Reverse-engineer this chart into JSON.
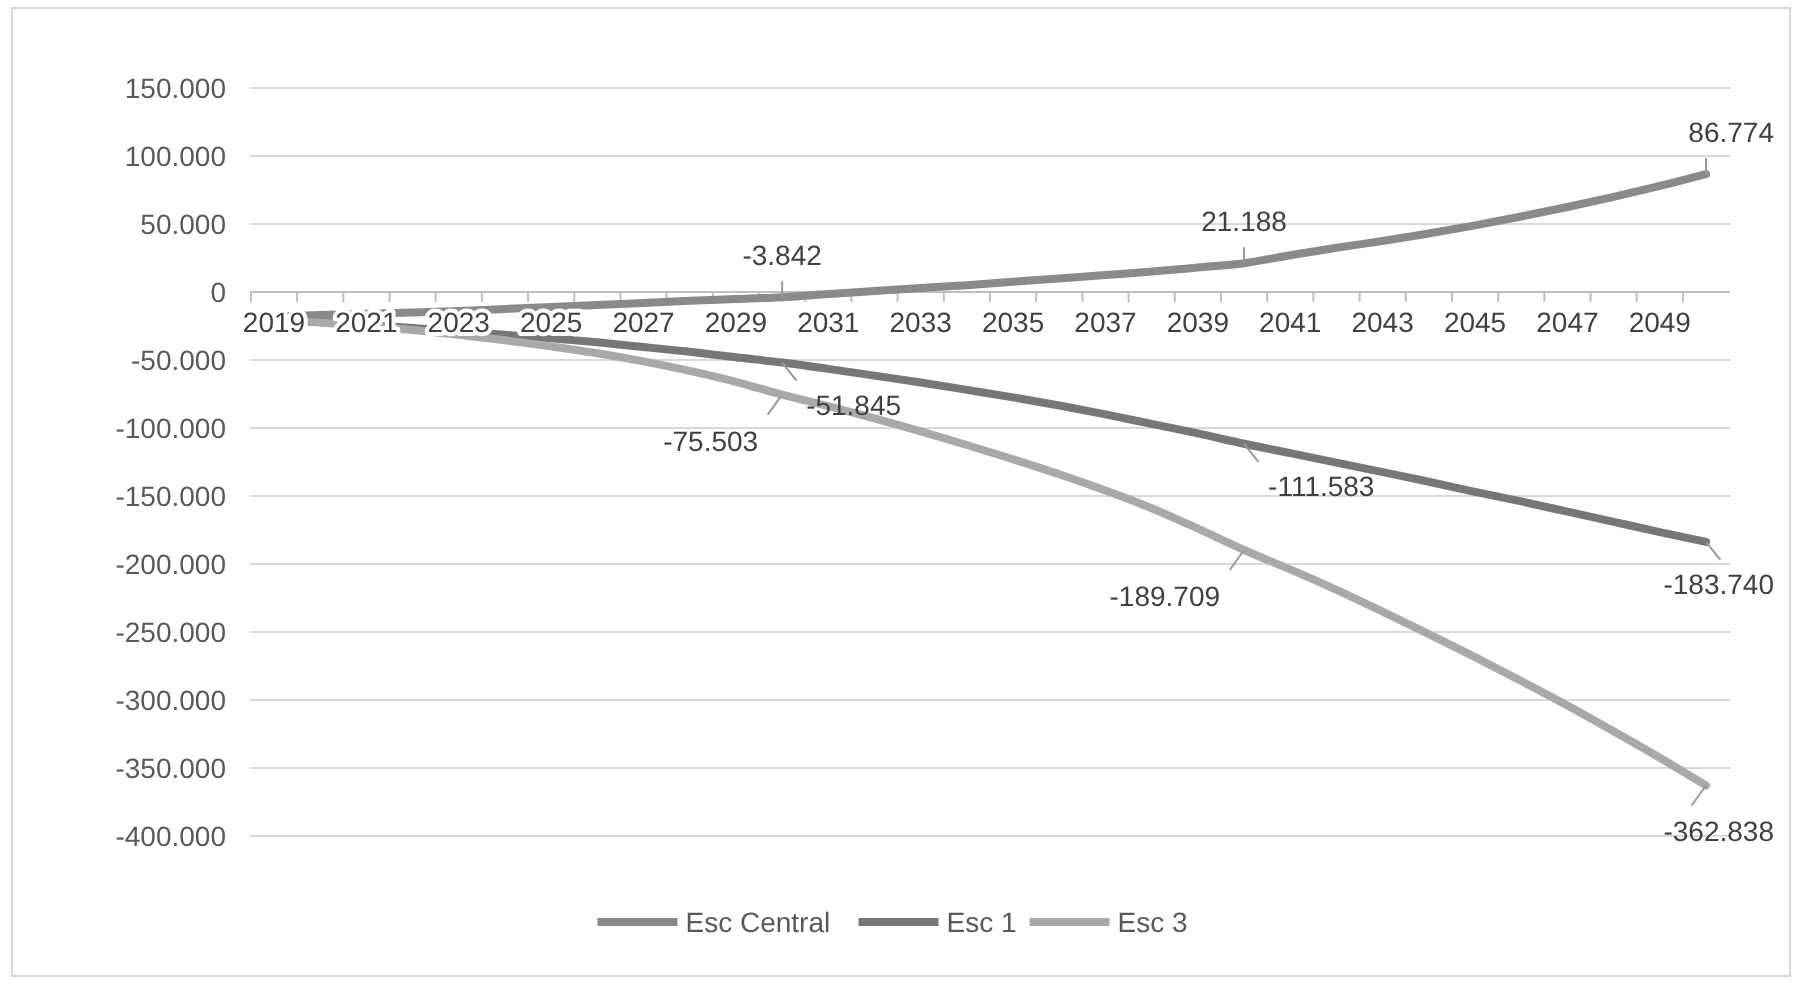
{
  "chart_data": {
    "type": "line",
    "categories": [
      "2019",
      null,
      "2021",
      null,
      "2023",
      null,
      "2025",
      null,
      "2027",
      null,
      "2029",
      null,
      "2031",
      null,
      "2033",
      null,
      "2035",
      null,
      "2037",
      null,
      "2039",
      null,
      "2041",
      null,
      "2043",
      null,
      "2045",
      null,
      "2047",
      null,
      "2049",
      null
    ],
    "series": [
      {
        "name": "Esc Central",
        "color": "#8a8a8a",
        "values": [
          -18000,
          -17000,
          -16000,
          -15000,
          -14000,
          -12500,
          -11000,
          -9500,
          -8000,
          -6500,
          -5200,
          -3842,
          -1500,
          800,
          3000,
          5000,
          7500,
          10000,
          12500,
          15000,
          18000,
          21188,
          27000,
          32500,
          37500,
          43000,
          49000,
          55500,
          62500,
          70000,
          78000,
          86774
        ],
        "value_labels": [
          null,
          null,
          null,
          null,
          null,
          null,
          null,
          null,
          null,
          null,
          null,
          "-3.842",
          null,
          null,
          null,
          null,
          null,
          null,
          null,
          null,
          null,
          "21.188",
          null,
          null,
          null,
          null,
          null,
          null,
          null,
          null,
          null,
          "86.774"
        ]
      },
      {
        "name": "Esc 1",
        "color": "#777777",
        "values": [
          -20000,
          -22000,
          -24000,
          -26500,
          -29000,
          -31500,
          -34000,
          -37000,
          -40500,
          -44000,
          -48000,
          -51845,
          -56500,
          -61500,
          -66500,
          -72000,
          -77500,
          -83500,
          -90000,
          -97000,
          -104000,
          -111583,
          -118500,
          -125500,
          -132500,
          -139500,
          -147000,
          -154000,
          -161500,
          -169000,
          -176500,
          -183740
        ],
        "value_labels": [
          null,
          null,
          null,
          null,
          null,
          null,
          null,
          null,
          null,
          null,
          null,
          "-51.845",
          null,
          null,
          null,
          null,
          null,
          null,
          null,
          null,
          null,
          "-111.583",
          null,
          null,
          null,
          null,
          null,
          null,
          null,
          null,
          null,
          "-183.740"
        ]
      },
      {
        "name": "Esc 3",
        "color": "#a9a9a9",
        "values": [
          -20000,
          -22500,
          -25000,
          -28000,
          -31500,
          -35500,
          -40000,
          -45000,
          -51000,
          -58000,
          -66000,
          -75503,
          -84000,
          -93000,
          -102500,
          -112500,
          -123000,
          -134000,
          -146000,
          -159000,
          -174000,
          -189709,
          -204000,
          -219000,
          -235000,
          -251500,
          -268500,
          -286000,
          -304000,
          -323000,
          -342500,
          -362838
        ],
        "value_labels": [
          null,
          null,
          null,
          null,
          null,
          null,
          null,
          null,
          null,
          null,
          null,
          "-75.503",
          null,
          null,
          null,
          null,
          null,
          null,
          null,
          null,
          null,
          "-189.709",
          null,
          null,
          null,
          null,
          null,
          null,
          null,
          null,
          null,
          "-362.838"
        ]
      }
    ],
    "ylim": [
      -400000,
      150000
    ],
    "yticks": [
      {
        "value": 150000,
        "label": "150.000"
      },
      {
        "value": 100000,
        "label": "100.000"
      },
      {
        "value": 50000,
        "label": "50.000"
      },
      0,
      {
        "value": -50000,
        "label": "-50.000"
      },
      {
        "value": -100000,
        "label": "-100.000"
      },
      {
        "value": -150000,
        "label": "-150.000"
      },
      {
        "value": -200000,
        "label": "-200.000"
      },
      {
        "value": -250000,
        "label": "-250.000"
      },
      {
        "value": -300000,
        "label": "-300.000"
      },
      {
        "value": -350000,
        "label": "-350.000"
      },
      {
        "value": -400000,
        "label": "-400.000"
      }
    ],
    "grid": "y",
    "legend": "bottom",
    "marker": "none",
    "line_style": "solid"
  }
}
